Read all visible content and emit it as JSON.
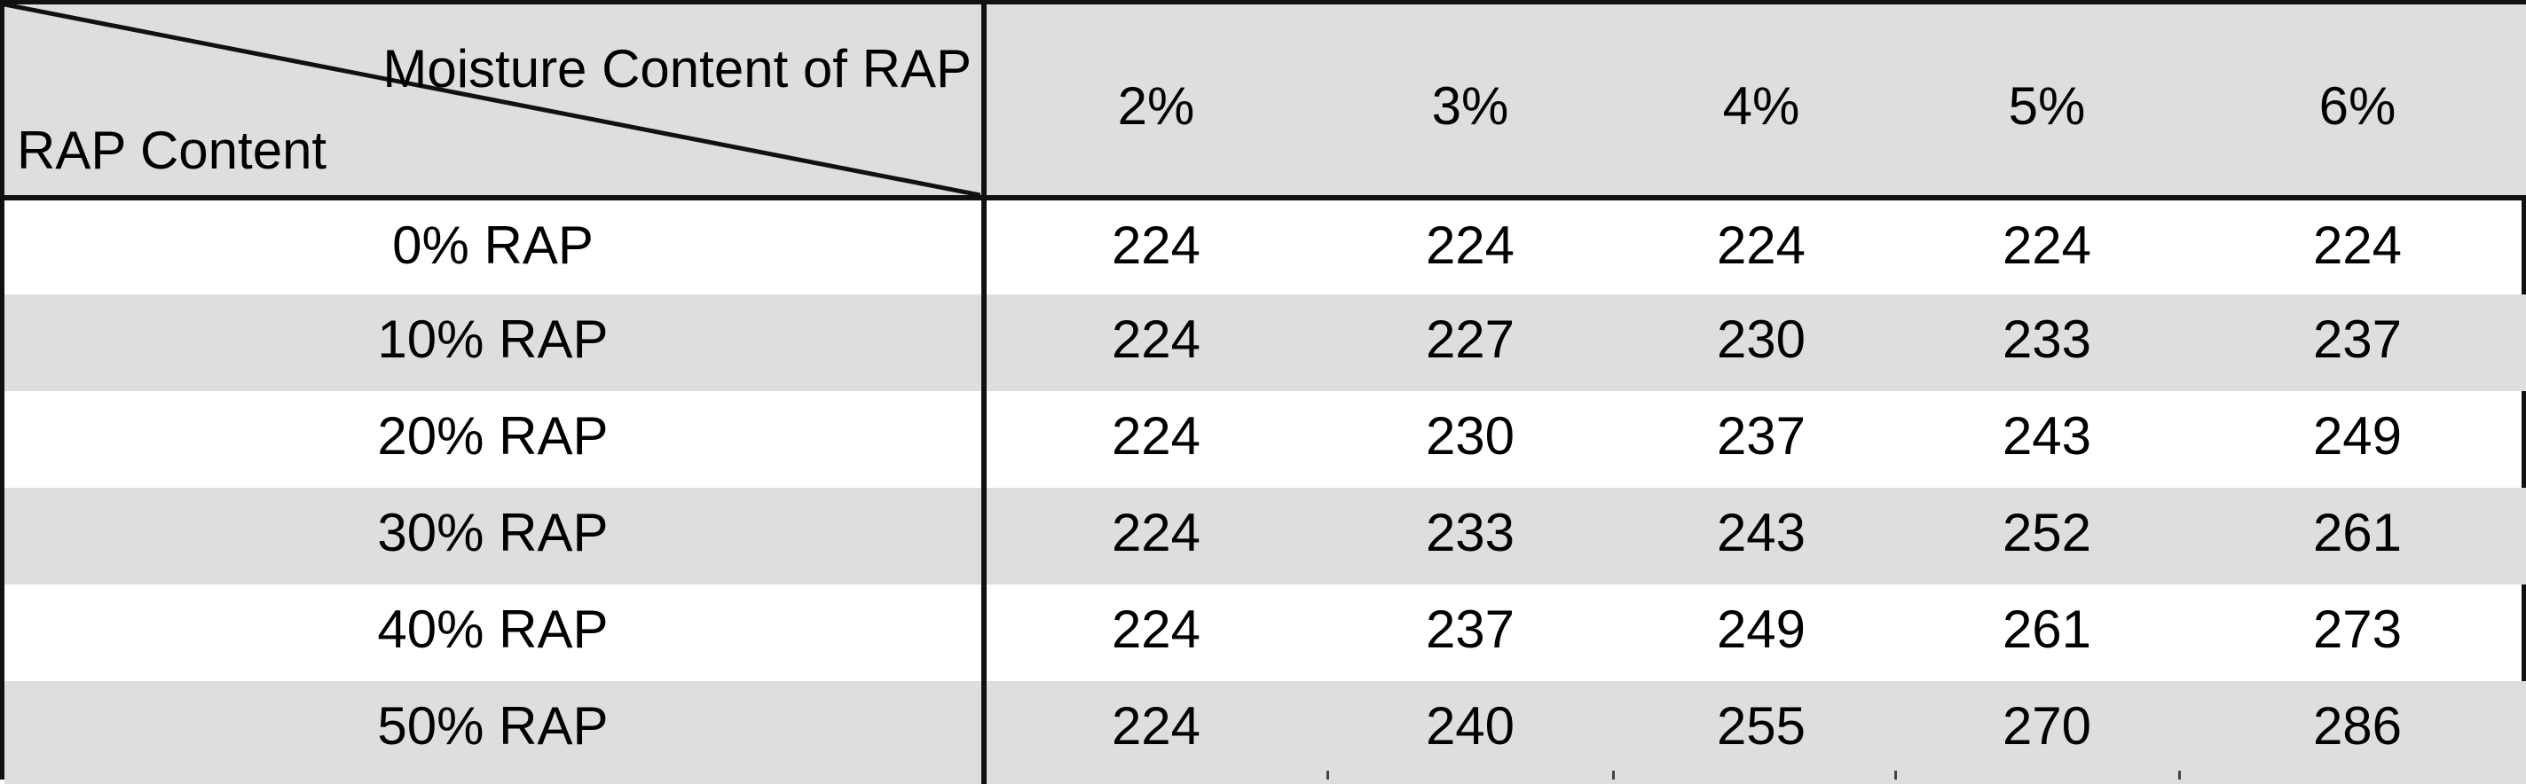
{
  "table": {
    "corner": {
      "column_axis_label": "Moisture Content of RAP",
      "row_axis_label": "RAP Content"
    },
    "columns": [
      "2%",
      "3%",
      "4%",
      "5%",
      "6%"
    ],
    "rows": [
      {
        "label": "0% RAP",
        "values": [
          "224",
          "224",
          "224",
          "224",
          "224"
        ]
      },
      {
        "label": "10% RAP",
        "values": [
          "224",
          "227",
          "230",
          "233",
          "237"
        ]
      },
      {
        "label": "20% RAP",
        "values": [
          "224",
          "230",
          "237",
          "243",
          "249"
        ]
      },
      {
        "label": "30% RAP",
        "values": [
          "224",
          "233",
          "243",
          "252",
          "261"
        ]
      },
      {
        "label": "40% RAP",
        "values": [
          "224",
          "237",
          "249",
          "261",
          "273"
        ]
      },
      {
        "label": "50% RAP",
        "values": [
          "224",
          "240",
          "255",
          "270",
          "286"
        ]
      }
    ],
    "colors": {
      "shade": "#dedede",
      "border": "#111111"
    }
  }
}
